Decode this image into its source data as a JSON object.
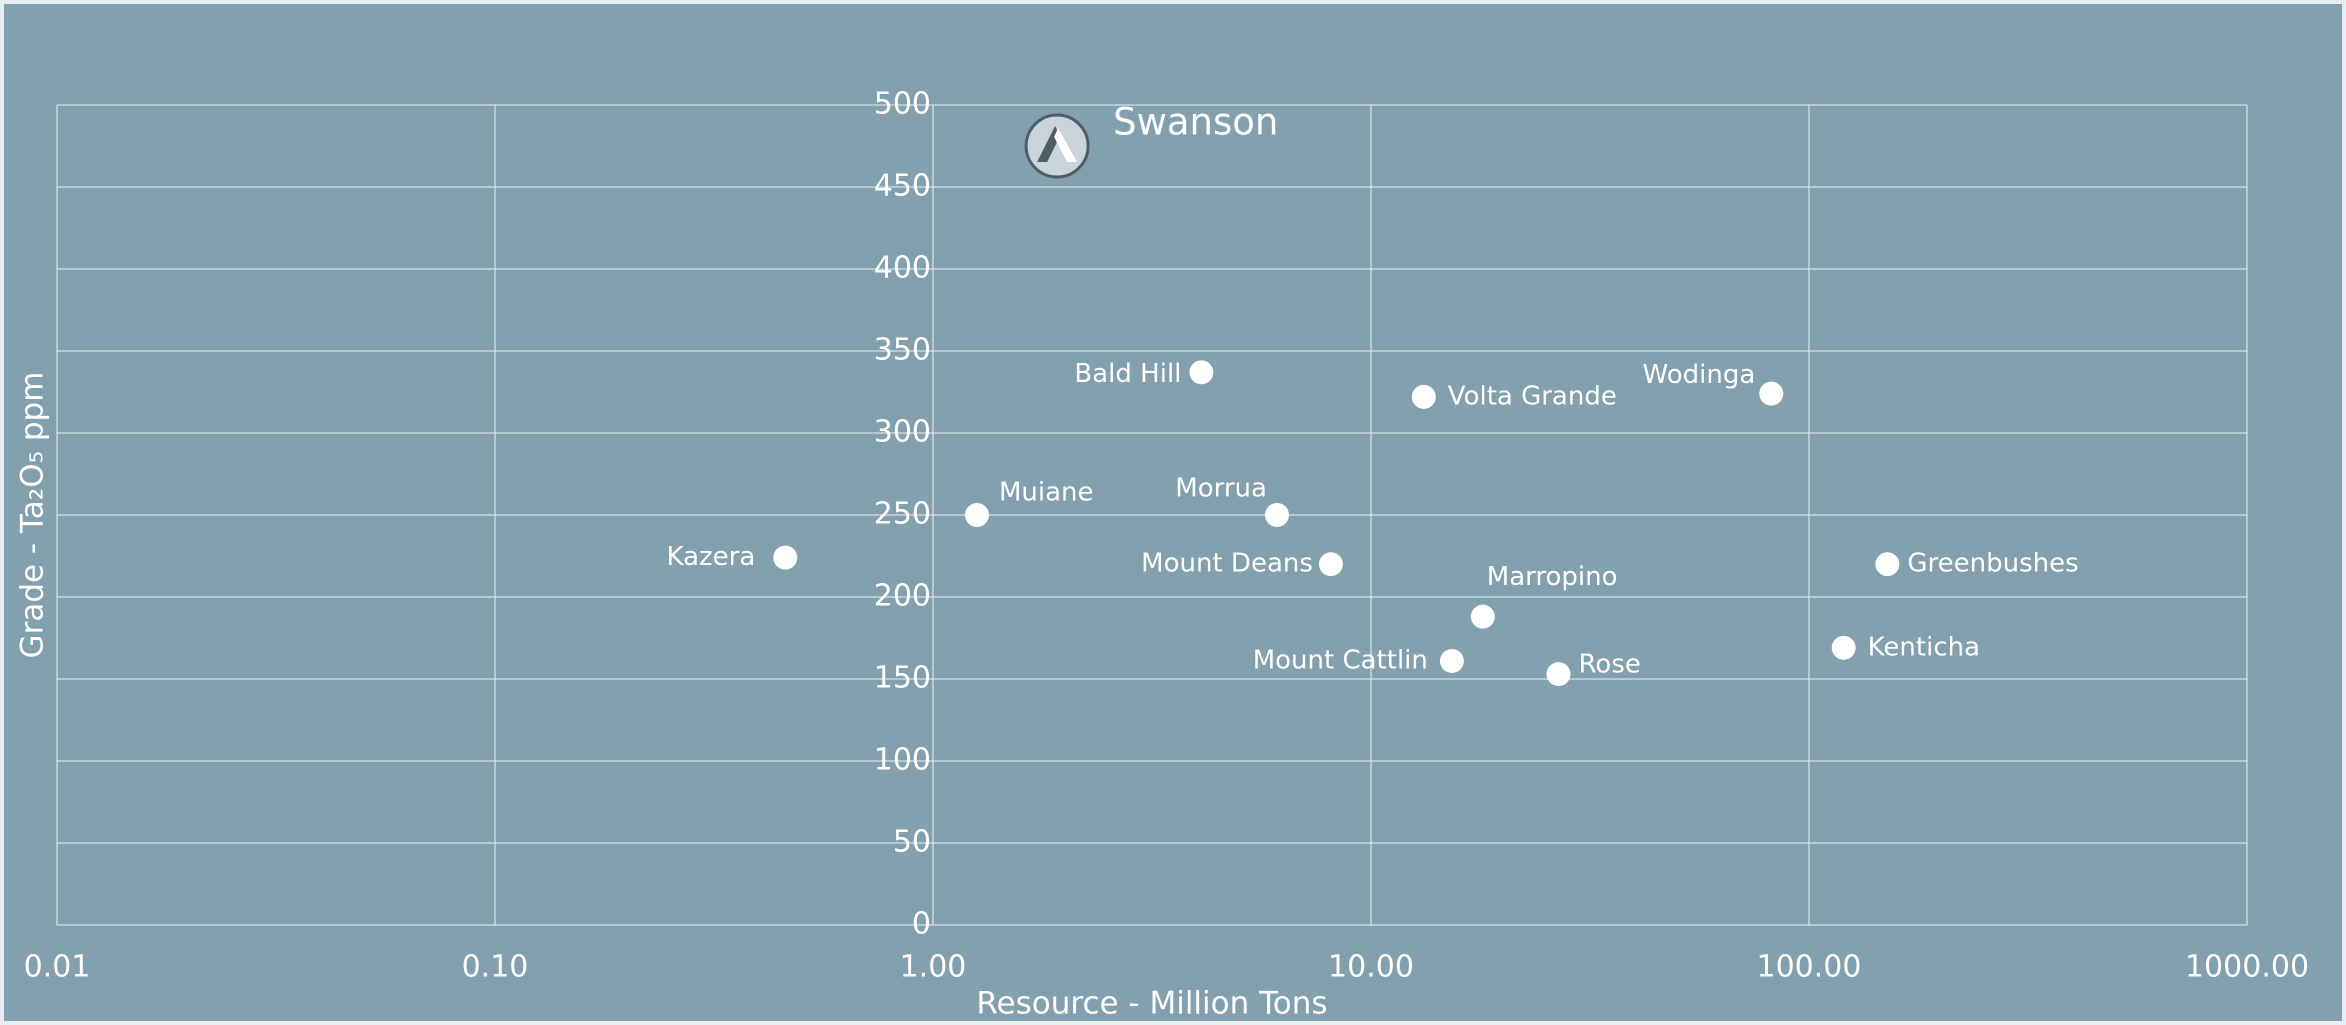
{
  "chart_data": {
    "type": "scatter",
    "xlabel": "Resource - Million Tons",
    "ylabel": "Grade - Ta₂O₅ ppm",
    "xscale": "log",
    "grid": true,
    "color": "#ffffff",
    "xlim": [
      0.01,
      1000
    ],
    "ylim": [
      0,
      500
    ],
    "xticks": [
      0.01,
      {
        "value": 0.1,
        "label": "0.10"
      },
      {
        "value": 1,
        "label": "1.00"
      },
      {
        "value": 10,
        "label": "10.00"
      },
      {
        "value": 100,
        "label": "100.00"
      },
      {
        "value": 1000,
        "label": "1000.00"
      }
    ],
    "yticks": [
      0,
      50,
      100,
      150,
      200,
      250,
      300,
      350,
      400,
      450,
      500
    ],
    "labels": [
      "Swanson",
      "Bald Hill",
      "Volta Grande",
      "Wodinga",
      "Muiane",
      "Morrua",
      "Kazera",
      "Mount Deans",
      "Marropino",
      "Mount Cattlin",
      "Rose",
      "Greenbushes",
      "Kenticha"
    ],
    "x": [
      1.92,
      4.1,
      13.2,
      82,
      1.26,
      6.1,
      0.46,
      8.1,
      18,
      15.3,
      26.8,
      151,
      120
    ],
    "y": [
      475,
      337,
      322,
      324,
      250,
      250,
      224,
      220,
      188,
      161,
      153,
      220,
      169
    ]
  }
}
